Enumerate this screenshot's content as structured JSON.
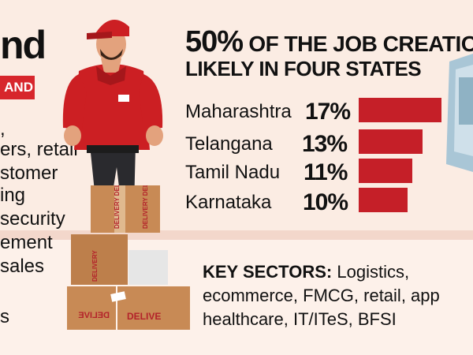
{
  "left_panel": {
    "title": "nd",
    "badge": "AND",
    "lines": [
      ",",
      "ers, retail",
      "stomer",
      "ing",
      "security",
      "ement",
      "sales",
      "s"
    ]
  },
  "headline": {
    "percent": "50%",
    "line1_rest": "OF THE JOB CREATION",
    "line2": "LIKELY IN FOUR STATES"
  },
  "chart_data": {
    "type": "bar",
    "orientation": "horizontal",
    "categories": [
      "Maharashtra",
      "Telangana",
      "Tamil Nadu",
      "Karnataka"
    ],
    "values": [
      17,
      13,
      11,
      10
    ],
    "value_labels": [
      "17%",
      "13%",
      "11%",
      "10%"
    ],
    "unit": "%",
    "bar_color": "#c51f28"
  },
  "key_sectors": {
    "heading": "KEY SECTORS:",
    "line1": "Logistics,",
    "line2": "ecommerce, FMCG, retail, app",
    "line3": "healthcare, IT/ITeS, BFSI"
  },
  "illustration": {
    "box_text_1": "DELIVERY",
    "box_text_2": "DELIVE",
    "box_text_3": "DELIVERY DEL",
    "box_text_4": "DELIVERY DEL",
    "box_text_mirror": "DELIVE"
  },
  "colors": {
    "accent": "#d7262c",
    "bar": "#c51f28",
    "background": "#fbece3",
    "cardboard": "#c88a55"
  }
}
